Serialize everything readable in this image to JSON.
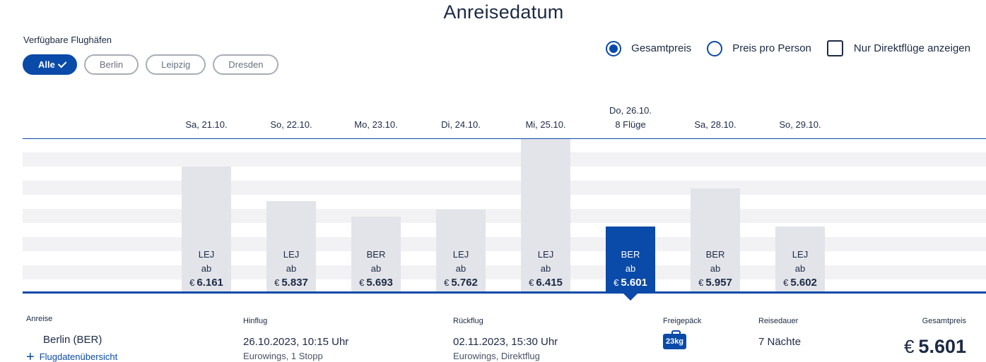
{
  "title": "Anreisedatum",
  "airports": {
    "label": "Verfügbare Flughäfen",
    "chips": [
      {
        "label": "Alle",
        "active": true
      },
      {
        "label": "Berlin",
        "active": false
      },
      {
        "label": "Leipzig",
        "active": false
      },
      {
        "label": "Dresden",
        "active": false
      }
    ]
  },
  "options": {
    "gesamtpreis": "Gesamtpreis",
    "pro_person": "Preis pro Person",
    "direkt": "Nur Direktflüge anzeigen",
    "selected": "gesamtpreis",
    "direkt_checked": false
  },
  "colors": {
    "accent": "#0a4aa8",
    "bar": "#e3e4e9",
    "text": "#1c2a45"
  },
  "chart_data": {
    "type": "bar",
    "categories": [
      "Sa, 21.10.",
      "So, 22.10.",
      "Mo, 23.10.",
      "Di, 24.10.",
      "Mi, 25.10.",
      "Do, 26.10.",
      "Sa, 28.10.",
      "So, 29.10."
    ],
    "values": [
      6161,
      5837,
      5693,
      5762,
      6415,
      5601,
      5957,
      5602
    ],
    "value_labels": [
      "6.161",
      "5.837",
      "5.693",
      "5.762",
      "6.415",
      "5.601",
      "5.957",
      "5.602"
    ],
    "airports": [
      "LEJ",
      "LEJ",
      "BER",
      "LEJ",
      "LEJ",
      "BER",
      "BER",
      "LEJ"
    ],
    "ab_label": "ab",
    "currency": "€",
    "selected_index": 5,
    "selected_extra": "8 Flüge"
  },
  "details": {
    "anreise_label": "Anreise",
    "anreise_value": "Berlin  (BER)",
    "overview_link": "Flugdatenübersicht",
    "hinflug_label": "Hinflug",
    "hinflug_value": "26.10.2023, 10:15 Uhr",
    "hinflug_sub": "Eurowings, 1 Stopp",
    "rueckflug_label": "Rückflug",
    "rueckflug_value": "02.11.2023, 15:30 Uhr",
    "rueckflug_sub": "Eurowings, Direktflug",
    "gepaeck_label": "Freigepäck",
    "gepaeck_value": "23kg",
    "dauer_label": "Reisedauer",
    "dauer_value": "7 Nächte",
    "total_label": "Gesamtpreis",
    "total_currency": "€",
    "total_value": "5.601"
  }
}
